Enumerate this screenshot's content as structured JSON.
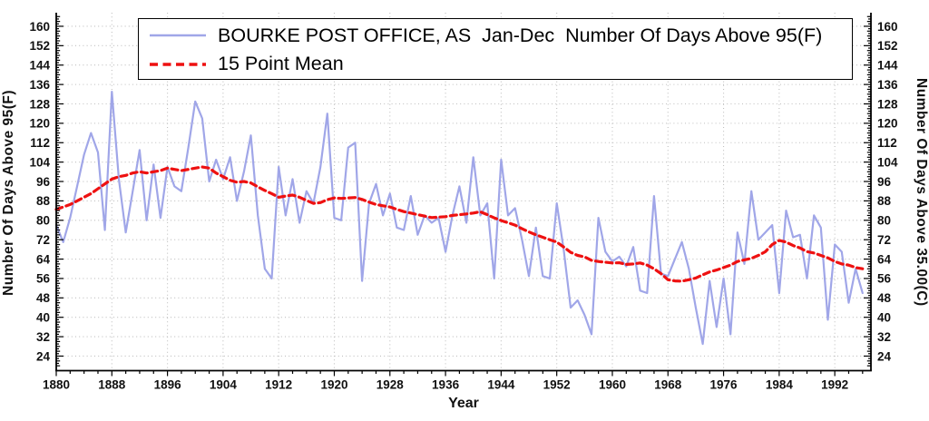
{
  "page": {
    "background": "#ffffff"
  },
  "chart_data": {
    "type": "line",
    "title": "BOURKE POST OFFICE, AS  Jan-Dec  Number Of Days Above 95(F)",
    "xlabel": "Year",
    "ylabel_left": "Number Of Days Above 95(F)",
    "ylabel_right": "Number Of Days Above 35.00(C)",
    "grid": "dotted",
    "legend_position": "top-center",
    "xlim": [
      1880,
      1997.2
    ],
    "ylim": [
      18,
      165.6
    ],
    "x_ticks": [
      1880,
      1888,
      1896,
      1904,
      1912,
      1920,
      1928,
      1936,
      1944,
      1952,
      1960,
      1968,
      1976,
      1984,
      1992
    ],
    "y_ticks": [
      24,
      32,
      40,
      48,
      56,
      64,
      72,
      80,
      88,
      96,
      104,
      112,
      120,
      128,
      136,
      144,
      152,
      160
    ],
    "colors": {
      "series_main": "#a0a6e8",
      "series_mean": "#ee1111",
      "grid": "#bfbfbf",
      "axis": "#000000",
      "tick_text": "#111111"
    },
    "x": [
      1880,
      1881,
      1882,
      1883,
      1884,
      1885,
      1886,
      1887,
      1888,
      1889,
      1890,
      1891,
      1892,
      1893,
      1894,
      1895,
      1896,
      1897,
      1898,
      1899,
      1900,
      1901,
      1902,
      1903,
      1904,
      1905,
      1906,
      1907,
      1908,
      1909,
      1910,
      1911,
      1912,
      1913,
      1914,
      1915,
      1916,
      1917,
      1918,
      1919,
      1920,
      1921,
      1922,
      1923,
      1924,
      1925,
      1926,
      1927,
      1928,
      1929,
      1930,
      1931,
      1932,
      1933,
      1934,
      1935,
      1936,
      1937,
      1938,
      1939,
      1940,
      1941,
      1942,
      1943,
      1944,
      1945,
      1946,
      1947,
      1948,
      1949,
      1950,
      1951,
      1952,
      1953,
      1954,
      1955,
      1956,
      1957,
      1958,
      1959,
      1960,
      1961,
      1962,
      1963,
      1964,
      1965,
      1966,
      1967,
      1968,
      1969,
      1970,
      1971,
      1972,
      1973,
      1974,
      1975,
      1976,
      1977,
      1978,
      1979,
      1980,
      1981,
      1982,
      1983,
      1984,
      1985,
      1986,
      1987,
      1988,
      1989,
      1990,
      1991,
      1992,
      1993,
      1994,
      1995,
      1996
    ],
    "series": [
      {
        "name": "BOURKE POST OFFICE, AS  Jan-Dec  Number Of Days Above 95(F)",
        "style": "solid",
        "color": "#a0a6e8",
        "values": [
          78,
          71,
          81,
          94,
          107,
          116,
          108,
          76,
          133,
          97,
          75,
          92,
          109,
          80,
          103,
          81,
          102,
          94,
          92,
          110,
          129,
          122,
          96,
          105,
          97,
          106,
          88,
          100,
          115,
          82,
          60,
          56,
          102,
          82,
          97,
          79,
          92,
          87,
          102,
          124,
          81,
          80,
          110,
          112,
          55,
          87,
          95,
          82,
          91,
          77,
          76,
          90,
          74,
          82,
          79,
          81,
          67,
          82,
          94,
          79,
          106,
          82,
          87,
          56,
          105,
          82,
          85,
          72,
          57,
          77,
          57,
          56,
          87,
          68,
          44,
          47,
          41,
          33,
          81,
          67,
          63,
          65,
          61,
          69,
          51,
          50,
          90,
          58,
          57,
          64,
          71,
          60,
          44,
          29,
          55,
          36,
          56,
          33,
          75,
          62,
          92,
          72,
          75,
          78,
          50,
          84,
          73,
          74,
          56,
          82,
          77,
          39,
          70,
          67,
          46,
          60,
          50
        ]
      },
      {
        "name": "15 Point Mean",
        "style": "dashed",
        "color": "#ee1111",
        "values": [
          84.5,
          85.5,
          86.5,
          88,
          89.5,
          91,
          93,
          95,
          97,
          98,
          98.5,
          99.5,
          100,
          99.5,
          100,
          100.5,
          101.5,
          101,
          100.5,
          101,
          101.5,
          102,
          101.5,
          99.5,
          98,
          96.5,
          95.7,
          96,
          95.4,
          93.8,
          92.3,
          91,
          89.5,
          90,
          90.4,
          89.5,
          88.2,
          87,
          87.3,
          88.5,
          89.2,
          89,
          89.2,
          89.4,
          88.6,
          87.5,
          86.5,
          86,
          85.5,
          84.5,
          83.6,
          83,
          82.3,
          81.7,
          81.1,
          81.3,
          81.5,
          82,
          82.3,
          82.6,
          83,
          83.5,
          82.3,
          81,
          79.9,
          79,
          78,
          76.5,
          75.2,
          74,
          73,
          72,
          71,
          69,
          66.8,
          65.5,
          64.9,
          63.5,
          63,
          62.7,
          62.4,
          62.5,
          61.8,
          62,
          62.4,
          61.5,
          60,
          58,
          55.5,
          55,
          54.9,
          55.5,
          56.2,
          57.5,
          58.7,
          59.5,
          60.5,
          61.5,
          63,
          63.7,
          64.3,
          65.5,
          67,
          70,
          71.7,
          71,
          69.6,
          68.6,
          67.1,
          66.5,
          65.5,
          64.5,
          63,
          62,
          61.5,
          60.5,
          60
        ]
      }
    ]
  }
}
